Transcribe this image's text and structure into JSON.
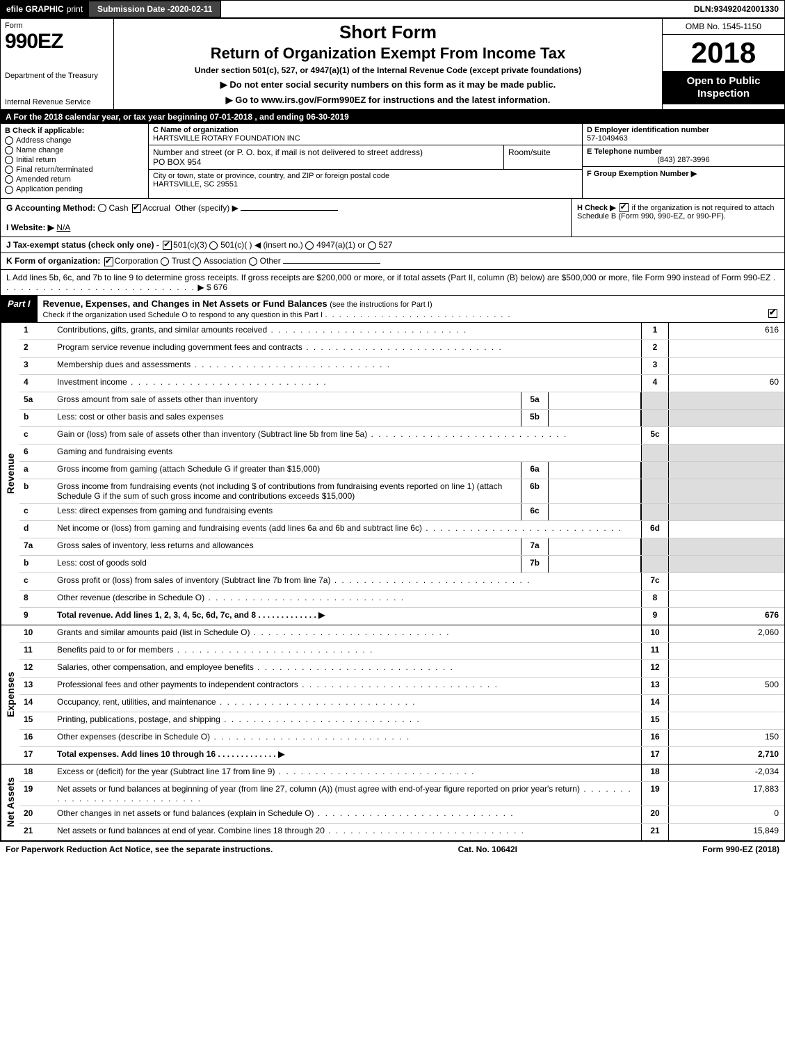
{
  "topbar": {
    "efile": "efile GRAPHIC",
    "print": "print",
    "subdate_label": "Submission Date - ",
    "subdate": "2020-02-11",
    "dln_label": "DLN: ",
    "dln": "93492042001330"
  },
  "header": {
    "form_label": "Form",
    "form_num": "990EZ",
    "dept": "Department of the Treasury",
    "irs": "Internal Revenue Service",
    "short_form": "Short Form",
    "title": "Return of Organization Exempt From Income Tax",
    "under": "Under section 501(c), 527, or 4947(a)(1) of the Internal Revenue Code (except private foundations)",
    "donot": "▶ Do not enter social security numbers on this form as it may be made public.",
    "goto": "▶ Go to www.irs.gov/Form990EZ for instructions and the latest information.",
    "omb": "OMB No. 1545-1150",
    "year": "2018",
    "open": "Open to Public Inspection"
  },
  "period": {
    "text_a": "A For the 2018 calendar year, or tax year beginning ",
    "begin": "07-01-2018",
    "text_b": " , and ending ",
    "end": "06-30-2019"
  },
  "boxB": {
    "label": "B Check if applicable:",
    "items": [
      "Address change",
      "Name change",
      "Initial return",
      "Final return/terminated",
      "Amended return",
      "Application pending"
    ]
  },
  "boxC": {
    "label": "C Name of organization",
    "name": "HARTSVILLE ROTARY FOUNDATION INC",
    "addr_label": "Number and street (or P. O. box, if mail is not delivered to street address)",
    "addr": "PO BOX 954",
    "room_label": "Room/suite",
    "city_label": "City or town, state or province, country, and ZIP or foreign postal code",
    "city": "HARTSVILLE, SC  29551"
  },
  "boxD": {
    "label": "D Employer identification number",
    "ein": "57-1049463"
  },
  "boxE": {
    "label": "E Telephone number",
    "phone": "(843) 287-3996"
  },
  "boxF": {
    "label": "F Group Exemption Number ▶"
  },
  "boxG": {
    "label": "G Accounting Method:",
    "cash": "Cash",
    "accrual": "Accrual",
    "other": "Other (specify) ▶"
  },
  "boxH": {
    "label": "H Check ▶",
    "text": "if the organization is not required to attach Schedule B (Form 990, 990-EZ, or 990-PF)."
  },
  "boxI": {
    "label": "I Website: ▶",
    "val": "N/A"
  },
  "boxJ": {
    "label": "J Tax-exempt status (check only one) - ",
    "opt1": "501(c)(3)",
    "opt2": "501(c)(  ) ◀ (insert no.)",
    "opt3": "4947(a)(1) or",
    "opt4": "527"
  },
  "boxK": {
    "label": "K Form of organization:",
    "opts": [
      "Corporation",
      "Trust",
      "Association",
      "Other"
    ]
  },
  "boxL": {
    "text": "L Add lines 5b, 6c, and 7b to line 9 to determine gross receipts. If gross receipts are $200,000 or more, or if total assets (Part II, column (B) below) are $500,000 or more, file Form 990 instead of Form 990-EZ",
    "arrow": "▶ $",
    "val": "676"
  },
  "part1": {
    "label": "Part I",
    "title": "Revenue, Expenses, and Changes in Net Assets or Fund Balances",
    "sub": "(see the instructions for Part I)",
    "check_line": "Check if the organization used Schedule O to respond to any question in this Part I"
  },
  "sections": {
    "revenue": "Revenue",
    "expenses": "Expenses",
    "netassets": "Net Assets"
  },
  "lines": [
    {
      "n": "1",
      "d": "Contributions, gifts, grants, and similar amounts received",
      "r": "1",
      "v": "616"
    },
    {
      "n": "2",
      "d": "Program service revenue including government fees and contracts",
      "r": "2",
      "v": ""
    },
    {
      "n": "3",
      "d": "Membership dues and assessments",
      "r": "3",
      "v": ""
    },
    {
      "n": "4",
      "d": "Investment income",
      "r": "4",
      "v": "60"
    },
    {
      "n": "5a",
      "d": "Gross amount from sale of assets other than inventory",
      "ib": "5a",
      "iv": ""
    },
    {
      "n": "b",
      "d": "Less: cost or other basis and sales expenses",
      "ib": "5b",
      "iv": ""
    },
    {
      "n": "c",
      "d": "Gain or (loss) from sale of assets other than inventory (Subtract line 5b from line 5a)",
      "r": "5c",
      "v": ""
    },
    {
      "n": "6",
      "d": "Gaming and fundraising events",
      "noval": true
    },
    {
      "n": "a",
      "d": "Gross income from gaming (attach Schedule G if greater than $15,000)",
      "ib": "6a",
      "iv": ""
    },
    {
      "n": "b",
      "d": "Gross income from fundraising events (not including $                    of contributions from fundraising events reported on line 1) (attach Schedule G if the sum of such gross income and contributions exceeds $15,000)",
      "ib": "6b",
      "iv": ""
    },
    {
      "n": "c",
      "d": "Less: direct expenses from gaming and fundraising events",
      "ib": "6c",
      "iv": ""
    },
    {
      "n": "d",
      "d": "Net income or (loss) from gaming and fundraising events (add lines 6a and 6b and subtract line 6c)",
      "r": "6d",
      "v": ""
    },
    {
      "n": "7a",
      "d": "Gross sales of inventory, less returns and allowances",
      "ib": "7a",
      "iv": ""
    },
    {
      "n": "b",
      "d": "Less: cost of goods sold",
      "ib": "7b",
      "iv": ""
    },
    {
      "n": "c",
      "d": "Gross profit or (loss) from sales of inventory (Subtract line 7b from line 7a)",
      "r": "7c",
      "v": ""
    },
    {
      "n": "8",
      "d": "Other revenue (describe in Schedule O)",
      "r": "8",
      "v": ""
    },
    {
      "n": "9",
      "d": "Total revenue. Add lines 1, 2, 3, 4, 5c, 6d, 7c, and 8",
      "r": "9",
      "v": "676",
      "bold": true,
      "arrow": true
    }
  ],
  "exp_lines": [
    {
      "n": "10",
      "d": "Grants and similar amounts paid (list in Schedule O)",
      "r": "10",
      "v": "2,060"
    },
    {
      "n": "11",
      "d": "Benefits paid to or for members",
      "r": "11",
      "v": ""
    },
    {
      "n": "12",
      "d": "Salaries, other compensation, and employee benefits",
      "r": "12",
      "v": ""
    },
    {
      "n": "13",
      "d": "Professional fees and other payments to independent contractors",
      "r": "13",
      "v": "500"
    },
    {
      "n": "14",
      "d": "Occupancy, rent, utilities, and maintenance",
      "r": "14",
      "v": ""
    },
    {
      "n": "15",
      "d": "Printing, publications, postage, and shipping",
      "r": "15",
      "v": ""
    },
    {
      "n": "16",
      "d": "Other expenses (describe in Schedule O)",
      "r": "16",
      "v": "150"
    },
    {
      "n": "17",
      "d": "Total expenses. Add lines 10 through 16",
      "r": "17",
      "v": "2,710",
      "bold": true,
      "arrow": true
    }
  ],
  "na_lines": [
    {
      "n": "18",
      "d": "Excess or (deficit) for the year (Subtract line 17 from line 9)",
      "r": "18",
      "v": "-2,034"
    },
    {
      "n": "19",
      "d": "Net assets or fund balances at beginning of year (from line 27, column (A)) (must agree with end-of-year figure reported on prior year's return)",
      "r": "19",
      "v": "17,883"
    },
    {
      "n": "20",
      "d": "Other changes in net assets or fund balances (explain in Schedule O)",
      "r": "20",
      "v": "0"
    },
    {
      "n": "21",
      "d": "Net assets or fund balances at end of year. Combine lines 18 through 20",
      "r": "21",
      "v": "15,849"
    }
  ],
  "footer": {
    "left": "For Paperwork Reduction Act Notice, see the separate instructions.",
    "mid": "Cat. No. 10642I",
    "right": "Form 990-EZ (2018)"
  }
}
